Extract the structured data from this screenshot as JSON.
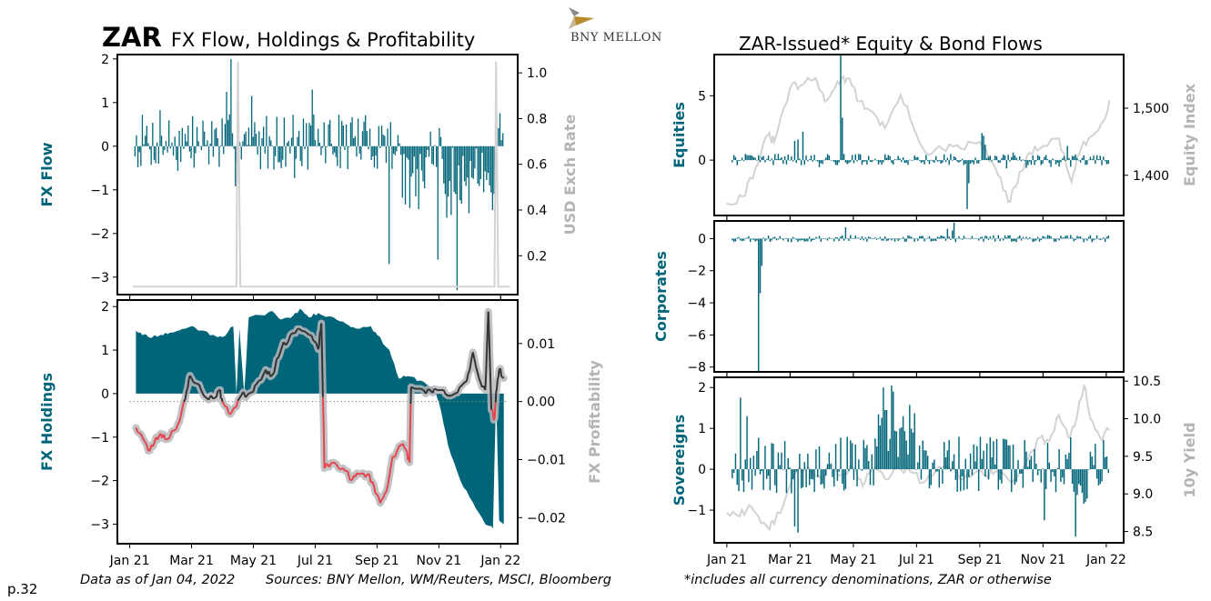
{
  "header": {
    "currency": "ZAR",
    "left_title": "FX Flow, Holdings & Profitability",
    "right_title": "ZAR-Issued* Equity & Bond Flows",
    "logo_text": "BNY MELLON"
  },
  "footer": {
    "page": "p.32",
    "as_of": "Data as of Jan 04, 2022",
    "sources": "Sources:  BNY Mellon, WM/Reuters, MSCI, Bloomberg",
    "note": "*includes all currency denominations, ZAR or otherwise"
  },
  "colors": {
    "teal": "#006579",
    "grey_line": "#d3d3d3",
    "right_axis_label": "#b4b4b4",
    "profit_positive": "#333333",
    "profit_negative": "#e8434b",
    "profit_halo": "#b8b9bc"
  },
  "x_axis": {
    "ticks": [
      "Jan 21",
      "Mar 21",
      "May 21",
      "Jul 21",
      "Sep 21",
      "Nov 21",
      "Jan 22"
    ],
    "range": [
      "2021-01-01",
      "2022-01-04"
    ]
  },
  "chart_data": [
    {
      "id": "fx-flow",
      "type": "bar",
      "title": "FX Flow",
      "ylabel": "FX Flow",
      "y2label": "USD Exch Rate",
      "ylim": [
        -3.4,
        2.1
      ],
      "yticks": [
        -3,
        -2,
        -1,
        0,
        1,
        2
      ],
      "y2lim": [
        0.03,
        1.08
      ],
      "y2ticks": [
        0.2,
        0.4,
        0.6,
        0.8,
        1.0
      ],
      "series": [
        {
          "name": "FX Flow",
          "kind": "bar",
          "generator": "fxflow"
        },
        {
          "name": "USD Exch Rate",
          "kind": "line",
          "baseline": 0.065,
          "spikes": [
            {
              "month": 3.5,
              "value": 1.05
            },
            {
              "month": 11.85,
              "value": 1.05
            }
          ]
        }
      ],
      "extremes": {
        "max": 2.0,
        "min": -3.3
      }
    },
    {
      "id": "fx-holdings",
      "type": "area",
      "ylabel": "FX Holdings",
      "y2label": "FX Profitability",
      "ylim": [
        -3.45,
        2.15
      ],
      "yticks": [
        -3,
        -2,
        -1,
        0,
        1,
        2
      ],
      "y2lim": [
        -0.0245,
        0.0175
      ],
      "y2ticks": [
        -0.02,
        -0.01,
        0.0,
        0.01
      ],
      "y2ticklabels": [
        "−0.02",
        "−0.01",
        "0.00",
        "0.01"
      ],
      "series": [
        {
          "name": "FX Holdings",
          "kind": "area",
          "points": [
            [
              0.2,
              1.45
            ],
            [
              0.35,
              1.4
            ],
            [
              0.6,
              1.3
            ],
            [
              1.0,
              1.35
            ],
            [
              1.3,
              1.4
            ],
            [
              1.6,
              1.45
            ],
            [
              2.0,
              1.55
            ],
            [
              2.3,
              1.45
            ],
            [
              2.7,
              1.35
            ],
            [
              3.0,
              1.3
            ],
            [
              3.35,
              1.55
            ],
            [
              3.45,
              0.0
            ],
            [
              3.55,
              1.5
            ],
            [
              3.7,
              0.0
            ],
            [
              3.85,
              1.75
            ],
            [
              4.3,
              1.8
            ],
            [
              4.6,
              1.9
            ],
            [
              4.9,
              1.7
            ],
            [
              5.3,
              1.8
            ],
            [
              5.5,
              1.95
            ],
            [
              5.8,
              1.75
            ],
            [
              6.1,
              1.85
            ],
            [
              6.6,
              1.75
            ],
            [
              7.0,
              1.6
            ],
            [
              7.3,
              1.5
            ],
            [
              7.8,
              1.55
            ],
            [
              8.0,
              1.35
            ],
            [
              8.4,
              1.0
            ],
            [
              8.7,
              0.35
            ],
            [
              9.0,
              0.4
            ],
            [
              9.4,
              0.3
            ],
            [
              9.8,
              0.15
            ],
            [
              10.0,
              -0.2
            ],
            [
              10.3,
              -1.2
            ],
            [
              10.7,
              -2.0
            ],
            [
              11.1,
              -2.5
            ],
            [
              11.5,
              -3.0
            ],
            [
              11.75,
              -3.1
            ],
            [
              11.85,
              0.0
            ],
            [
              11.95,
              -2.9
            ],
            [
              12.1,
              -3.0
            ]
          ]
        },
        {
          "name": "FX Profitability",
          "kind": "line",
          "points": [
            [
              0.2,
              -0.0045
            ],
            [
              0.4,
              -0.006
            ],
            [
              0.6,
              -0.0085
            ],
            [
              0.8,
              -0.007
            ],
            [
              1.0,
              -0.0055
            ],
            [
              1.2,
              -0.0065
            ],
            [
              1.4,
              -0.005
            ],
            [
              1.6,
              -0.0035
            ],
            [
              1.8,
              0.0005
            ],
            [
              1.95,
              0.0045
            ],
            [
              2.2,
              0.003
            ],
            [
              2.4,
              0.001
            ],
            [
              2.7,
              0.0005
            ],
            [
              2.9,
              0.002
            ],
            [
              3.0,
              0.0
            ],
            [
              3.2,
              -0.002
            ],
            [
              3.4,
              -0.001
            ],
            [
              3.6,
              0.001
            ],
            [
              3.9,
              0.0015
            ],
            [
              4.1,
              0.003
            ],
            [
              4.4,
              0.0055
            ],
            [
              4.6,
              0.0045
            ],
            [
              4.9,
              0.009
            ],
            [
              5.2,
              0.0115
            ],
            [
              5.5,
              0.0125
            ],
            [
              5.8,
              0.0115
            ],
            [
              6.1,
              0.009
            ],
            [
              6.2,
              0.0135
            ],
            [
              6.3,
              -0.0115
            ],
            [
              6.6,
              -0.0105
            ],
            [
              6.9,
              -0.0115
            ],
            [
              7.2,
              -0.0135
            ],
            [
              7.4,
              -0.0125
            ],
            [
              7.7,
              -0.0125
            ],
            [
              7.9,
              -0.0145
            ],
            [
              8.1,
              -0.0175
            ],
            [
              8.3,
              -0.0155
            ],
            [
              8.5,
              -0.0095
            ],
            [
              8.8,
              -0.0075
            ],
            [
              8.95,
              -0.0085
            ],
            [
              9.05,
              -0.0105
            ],
            [
              9.1,
              0.0025
            ],
            [
              9.5,
              0.002
            ],
            [
              9.8,
              0.0015
            ],
            [
              10.0,
              0.002
            ],
            [
              10.3,
              0.001
            ],
            [
              10.6,
              0.0015
            ],
            [
              10.9,
              0.0035
            ],
            [
              11.1,
              0.0085
            ],
            [
              11.3,
              0.004
            ],
            [
              11.5,
              0.002
            ],
            [
              11.6,
              0.0155
            ],
            [
              11.7,
              -0.0015
            ],
            [
              11.8,
              -0.003
            ],
            [
              11.85,
              0.0015
            ],
            [
              11.95,
              0.0055
            ],
            [
              12.1,
              0.004
            ]
          ]
        },
        {
          "name": "Zero Ref",
          "kind": "dotted",
          "value": 0.0
        }
      ]
    },
    {
      "id": "equities",
      "type": "bar",
      "ylabel": "Equities",
      "y2label": "Equity Index",
      "ylim": [
        -4.3,
        8.2
      ],
      "yticks": [
        0,
        5
      ],
      "y2lim": [
        1340,
        1580
      ],
      "y2ticks": [
        1400,
        1500
      ],
      "y2ticklabels": [
        "1,400",
        "1,500"
      ],
      "series": [
        {
          "name": "Equities",
          "kind": "bar",
          "generator": "equities",
          "extremes": {
            "max": 8.2,
            "min": -3.8
          }
        },
        {
          "name": "Equity Index",
          "kind": "line",
          "points": [
            [
              0.0,
              1358
            ],
            [
              0.5,
              1368
            ],
            [
              0.9,
              1410
            ],
            [
              1.3,
              1460
            ],
            [
              1.5,
              1450
            ],
            [
              2.0,
              1530
            ],
            [
              2.4,
              1535
            ],
            [
              2.8,
              1545
            ],
            [
              3.1,
              1510
            ],
            [
              3.5,
              1540
            ],
            [
              3.8,
              1545
            ],
            [
              4.2,
              1510
            ],
            [
              4.6,
              1495
            ],
            [
              5.0,
              1470
            ],
            [
              5.5,
              1520
            ],
            [
              6.0,
              1460
            ],
            [
              6.4,
              1430
            ],
            [
              6.8,
              1440
            ],
            [
              7.4,
              1440
            ],
            [
              8.0,
              1450
            ],
            [
              8.5,
              1410
            ],
            [
              8.9,
              1360
            ],
            [
              9.2,
              1390
            ],
            [
              9.5,
              1430
            ],
            [
              9.9,
              1440
            ],
            [
              10.5,
              1455
            ],
            [
              10.9,
              1390
            ],
            [
              11.2,
              1440
            ],
            [
              11.6,
              1460
            ],
            [
              11.9,
              1480
            ],
            [
              12.1,
              1512
            ]
          ]
        }
      ]
    },
    {
      "id": "corporates",
      "type": "bar",
      "ylabel": "Corporates",
      "ylim": [
        -8.3,
        1.1
      ],
      "yticks": [
        -8,
        -6,
        -4,
        -2,
        0
      ],
      "series": [
        {
          "name": "Corporates",
          "kind": "bar",
          "generator": "corporates",
          "extremes": {
            "max": 1.0,
            "min": -8.3
          }
        }
      ]
    },
    {
      "id": "sovereigns",
      "type": "bar",
      "ylabel": "Sovereigns",
      "y2label": "10y Yield",
      "ylim": [
        -1.8,
        2.25
      ],
      "yticks": [
        -1,
        0,
        1,
        2
      ],
      "y2lim": [
        8.35,
        10.55
      ],
      "y2ticks": [
        8.5,
        9.0,
        9.5,
        10.0,
        10.5
      ],
      "y2ticklabels": [
        "8.5",
        "9.0",
        "9.5",
        "10.0",
        "10.5"
      ],
      "series": [
        {
          "name": "Sovereigns",
          "kind": "bar",
          "generator": "sovereigns",
          "extremes": {
            "max": 2.05,
            "min": -1.65
          }
        },
        {
          "name": "10y Yield",
          "kind": "line",
          "points": [
            [
              0.0,
              8.75
            ],
            [
              0.4,
              8.7
            ],
            [
              0.7,
              8.85
            ],
            [
              1.0,
              8.7
            ],
            [
              1.3,
              8.55
            ],
            [
              1.5,
              8.6
            ],
            [
              1.9,
              9.0
            ],
            [
              2.2,
              9.3
            ],
            [
              2.6,
              9.35
            ],
            [
              3.0,
              9.2
            ],
            [
              3.3,
              9.4
            ],
            [
              3.6,
              9.25
            ],
            [
              4.0,
              9.35
            ],
            [
              4.3,
              9.1
            ],
            [
              4.6,
              9.35
            ],
            [
              5.0,
              9.2
            ],
            [
              5.4,
              9.35
            ],
            [
              5.8,
              9.3
            ],
            [
              6.2,
              9.15
            ],
            [
              6.6,
              9.3
            ],
            [
              7.0,
              9.35
            ],
            [
              7.5,
              9.2
            ],
            [
              7.9,
              9.3
            ],
            [
              8.2,
              9.25
            ],
            [
              8.5,
              9.3
            ],
            [
              9.0,
              9.15
            ],
            [
              9.3,
              9.3
            ],
            [
              9.6,
              9.55
            ],
            [
              9.9,
              9.75
            ],
            [
              10.2,
              9.7
            ],
            [
              10.5,
              10.05
            ],
            [
              10.8,
              9.75
            ],
            [
              11.0,
              9.9
            ],
            [
              11.3,
              10.45
            ],
            [
              11.5,
              10.0
            ],
            [
              11.8,
              9.75
            ],
            [
              12.1,
              9.85
            ]
          ]
        }
      ]
    }
  ]
}
